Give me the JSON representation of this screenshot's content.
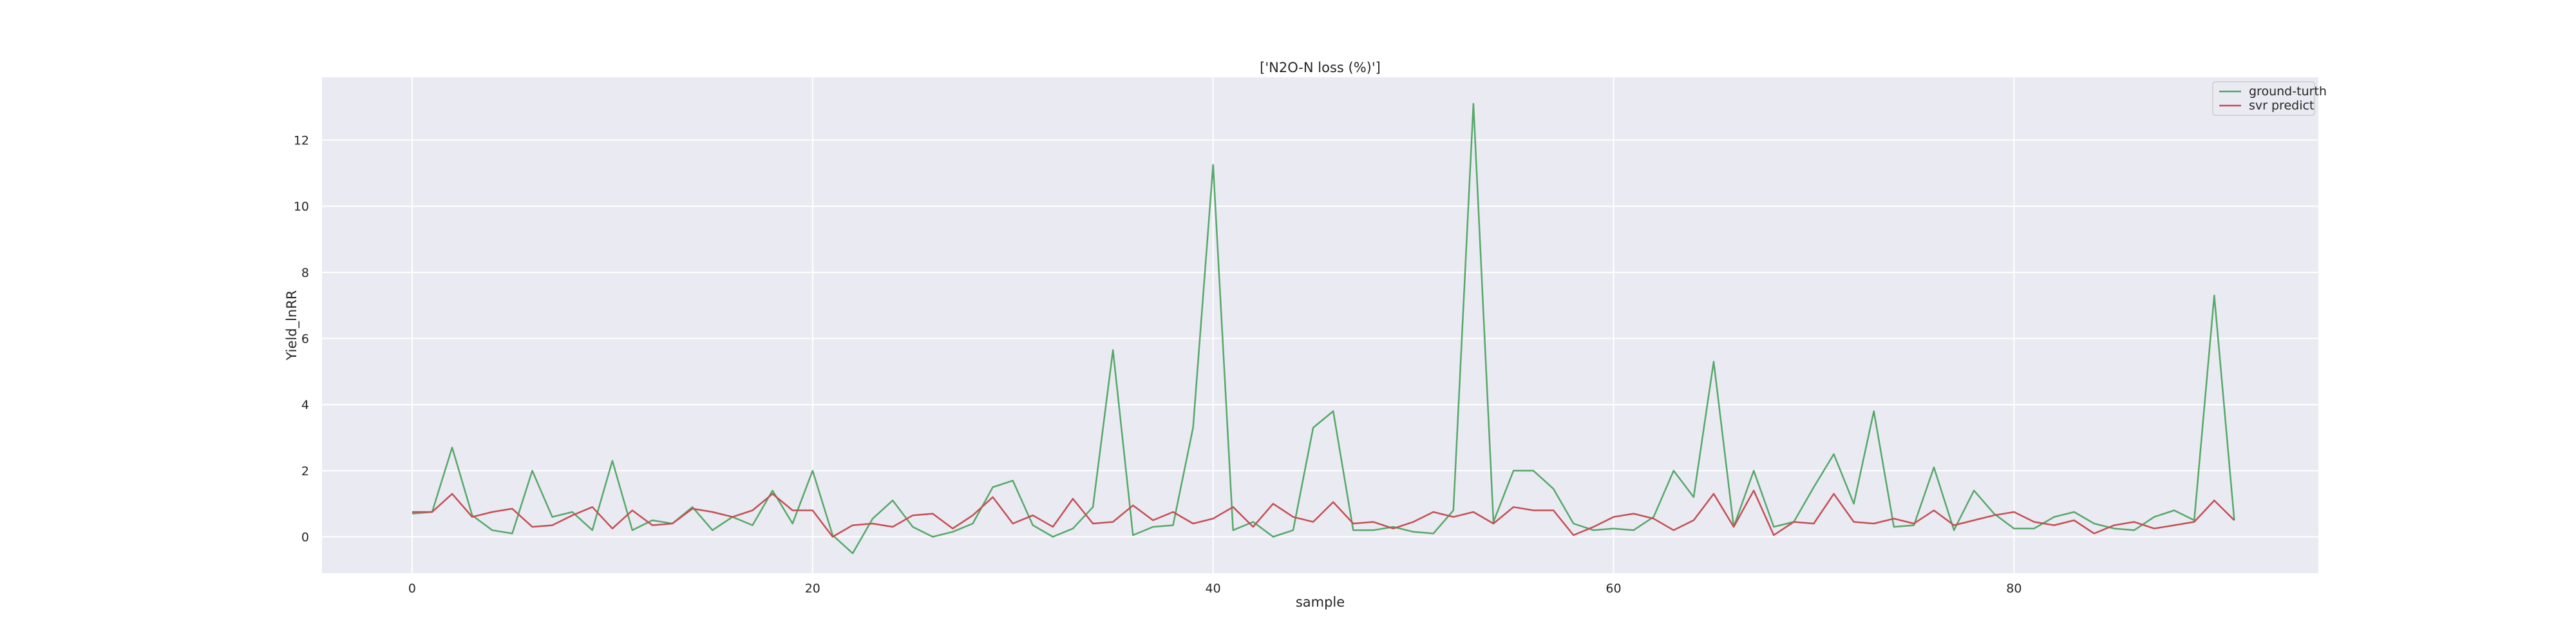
{
  "chart_data": {
    "type": "line",
    "title": "['N2O-N loss (%)']",
    "xlabel": "sample",
    "ylabel": "Yield_lnRR",
    "xlim": [
      -4.5,
      95.2
    ],
    "ylim": [
      -1.1,
      13.9
    ],
    "xticks": [
      0,
      20,
      40,
      60,
      80
    ],
    "yticks": [
      0,
      2,
      4,
      6,
      8,
      10,
      12
    ],
    "grid": true,
    "legend_position": "top-right",
    "x": [
      0,
      1,
      2,
      3,
      4,
      5,
      6,
      7,
      8,
      9,
      10,
      11,
      12,
      13,
      14,
      15,
      16,
      17,
      18,
      19,
      20,
      21,
      22,
      23,
      24,
      25,
      26,
      27,
      28,
      29,
      30,
      31,
      32,
      33,
      34,
      35,
      36,
      37,
      38,
      39,
      40,
      41,
      42,
      43,
      44,
      45,
      46,
      47,
      48,
      49,
      50,
      51,
      52,
      53,
      54,
      55,
      56,
      57,
      58,
      59,
      60,
      61,
      62,
      63,
      64,
      65,
      66,
      67,
      68,
      69,
      70,
      71,
      72,
      73,
      74,
      75,
      76,
      77,
      78,
      79,
      80,
      81,
      82,
      83,
      84,
      85,
      86,
      87,
      88,
      89,
      90,
      91
    ],
    "series": [
      {
        "name": "ground-turth",
        "color": "#55a868",
        "values": [
          0.7,
          0.75,
          2.7,
          0.65,
          0.2,
          0.1,
          2.0,
          0.6,
          0.75,
          0.2,
          2.3,
          0.2,
          0.5,
          0.4,
          0.9,
          0.2,
          0.6,
          0.35,
          1.4,
          0.4,
          2.0,
          0.05,
          -0.5,
          0.55,
          1.1,
          0.3,
          0.0,
          0.15,
          0.4,
          1.5,
          1.7,
          0.35,
          0.0,
          0.25,
          0.9,
          5.65,
          0.05,
          0.3,
          0.35,
          3.3,
          11.25,
          0.2,
          0.45,
          0.0,
          0.2,
          3.3,
          3.8,
          0.2,
          0.2,
          0.3,
          0.15,
          0.1,
          0.8,
          13.1,
          0.45,
          2.0,
          2.0,
          1.45,
          0.4,
          0.2,
          0.25,
          0.2,
          0.6,
          2.0,
          1.2,
          5.3,
          0.3,
          2.0,
          0.3,
          0.45,
          1.5,
          2.5,
          1.0,
          3.8,
          0.3,
          0.35,
          2.1,
          0.2,
          1.4,
          0.7,
          0.25,
          0.25,
          0.6,
          0.75,
          0.4,
          0.25,
          0.2,
          0.6,
          0.8,
          0.5,
          7.3,
          0.5
        ]
      },
      {
        "name": "svr predict",
        "color": "#c44e52",
        "values": [
          0.75,
          0.75,
          1.3,
          0.6,
          0.75,
          0.85,
          0.3,
          0.35,
          0.65,
          0.9,
          0.25,
          0.8,
          0.35,
          0.4,
          0.85,
          0.75,
          0.6,
          0.8,
          1.3,
          0.8,
          0.8,
          0.0,
          0.35,
          0.4,
          0.3,
          0.65,
          0.7,
          0.25,
          0.65,
          1.2,
          0.4,
          0.65,
          0.3,
          1.15,
          0.4,
          0.45,
          0.95,
          0.5,
          0.75,
          0.4,
          0.55,
          0.9,
          0.3,
          1.0,
          0.6,
          0.45,
          1.05,
          0.4,
          0.45,
          0.25,
          0.45,
          0.75,
          0.6,
          0.75,
          0.4,
          0.9,
          0.8,
          0.8,
          0.05,
          0.3,
          0.6,
          0.7,
          0.55,
          0.2,
          0.5,
          1.3,
          0.3,
          1.4,
          0.05,
          0.45,
          0.4,
          1.3,
          0.45,
          0.4,
          0.55,
          0.4,
          0.8,
          0.35,
          0.5,
          0.65,
          0.75,
          0.45,
          0.35,
          0.5,
          0.1,
          0.35,
          0.45,
          0.25,
          0.35,
          0.45,
          1.1,
          0.5
        ]
      }
    ]
  }
}
